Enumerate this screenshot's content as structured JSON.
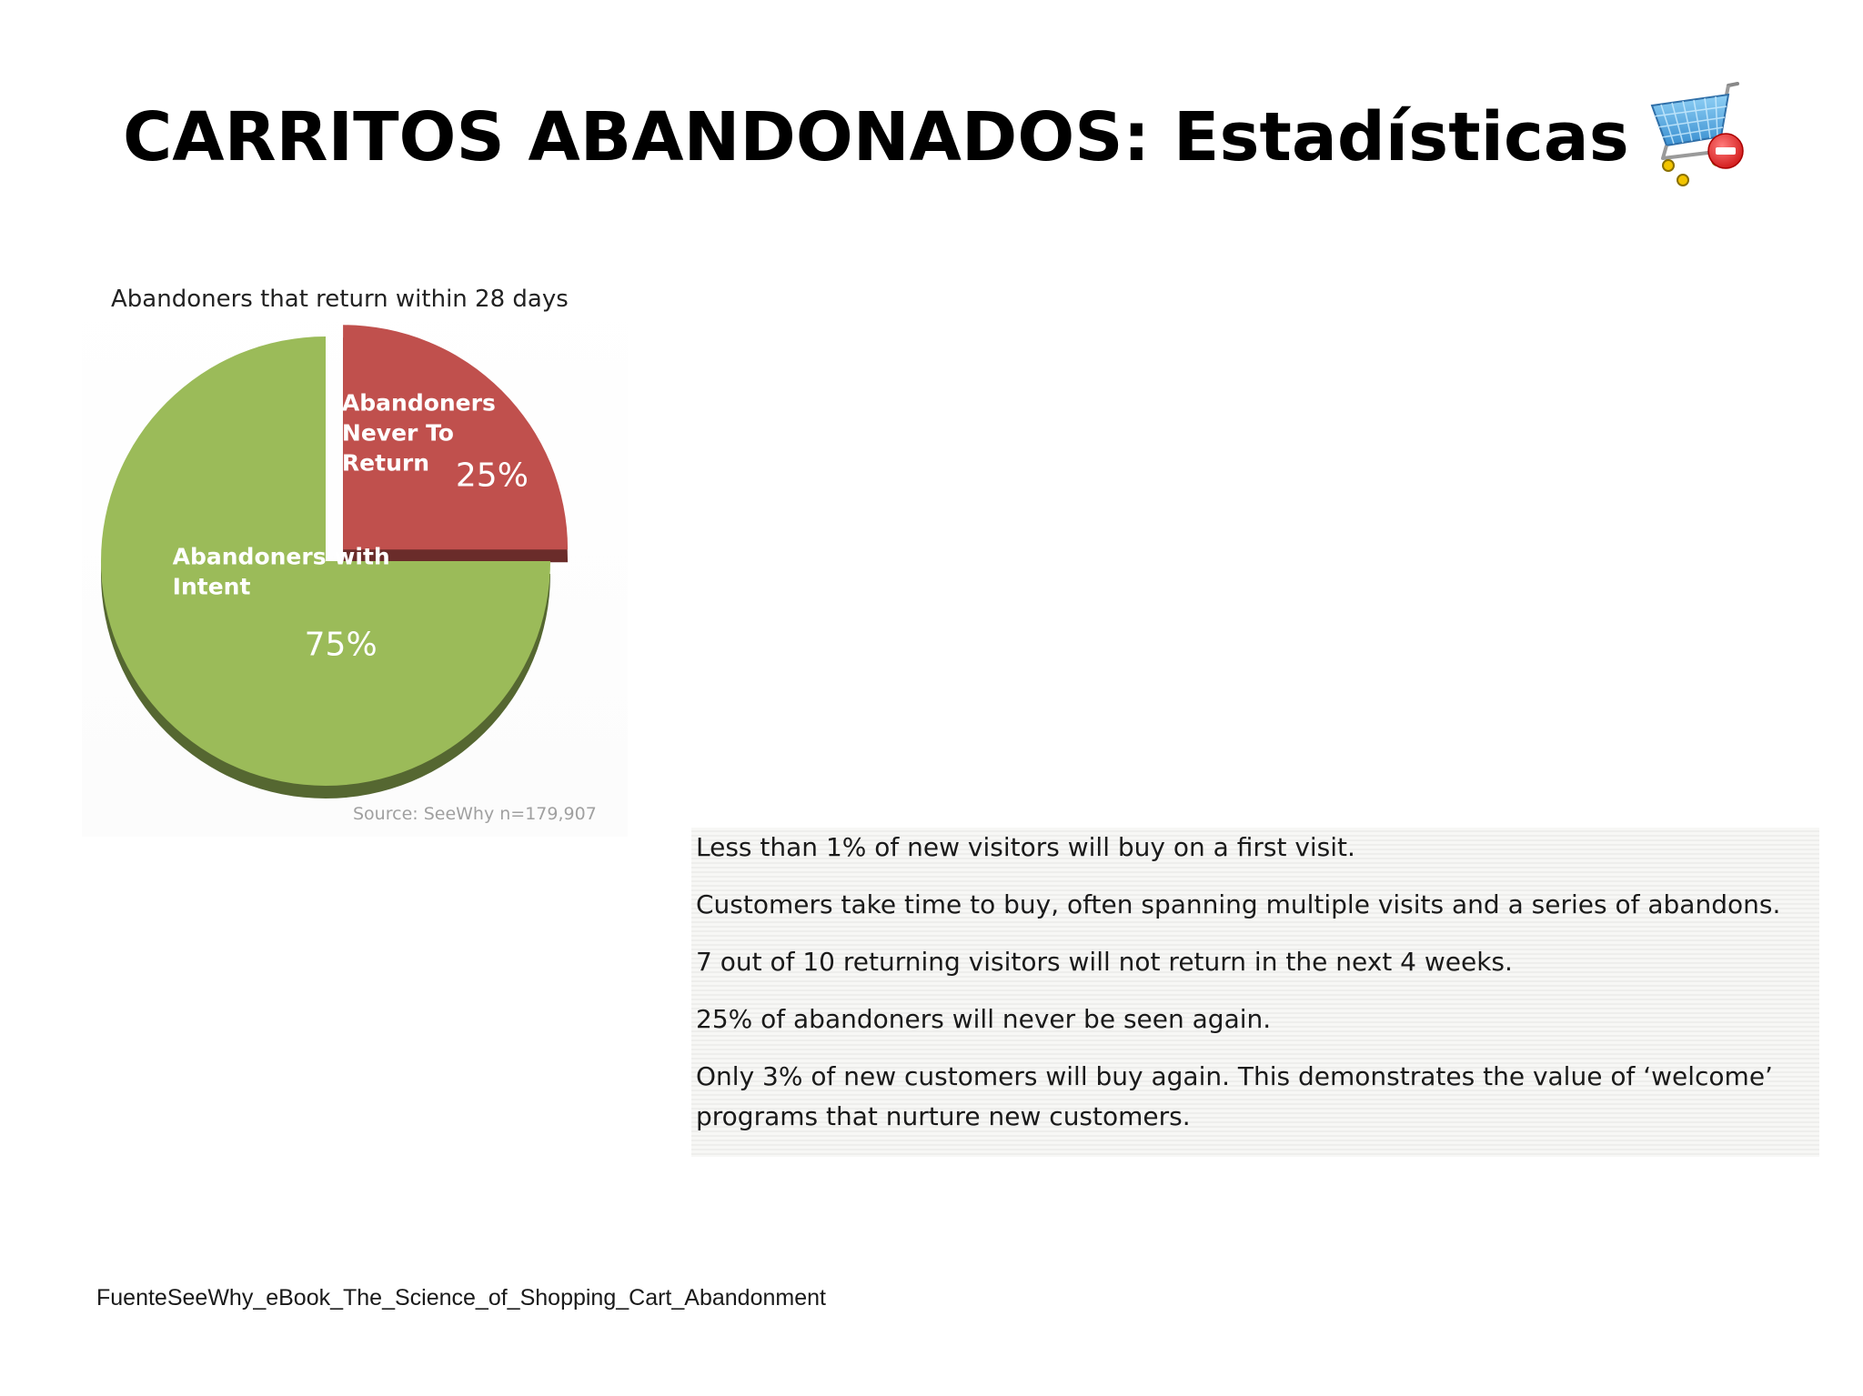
{
  "slide": {
    "title": "CARRITOS ABANDONADOS: Estadísticas",
    "footer_source": "FuenteSeeWhy_eBook_The_Science_of_Shopping_Cart_Abandonment"
  },
  "chart_data": {
    "type": "pie",
    "title": "Abandoners that return within 28 days",
    "source": "Source: SeeWhy n=179,907",
    "slices": [
      {
        "label_lines": [
          "Abandoners",
          "Never To",
          "Return"
        ],
        "value": 25,
        "value_label": "25%",
        "color": "#c0504d",
        "exploded": true
      },
      {
        "label_lines": [
          "Abandoners with",
          "Intent"
        ],
        "value": 75,
        "value_label": "75%",
        "color": "#9bbb59",
        "exploded": false
      }
    ]
  },
  "stats": {
    "items": [
      "Less than 1% of new visitors will buy on a first visit.",
      "Customers take time to buy, often spanning multiple visits and a series of abandons.",
      "7 out of 10 returning visitors will not return in the next 4 weeks.",
      "25% of abandoners will never be seen again.",
      "Only 3% of new customers will buy again. This demonstrates the value of ‘welcome’ programs that nurture new customers."
    ]
  },
  "icons": {
    "cart": "shopping-cart-remove-icon"
  },
  "colors": {
    "slice_never_return": "#c0504d",
    "slice_intent": "#9bbb59",
    "title_text": "#000000"
  }
}
